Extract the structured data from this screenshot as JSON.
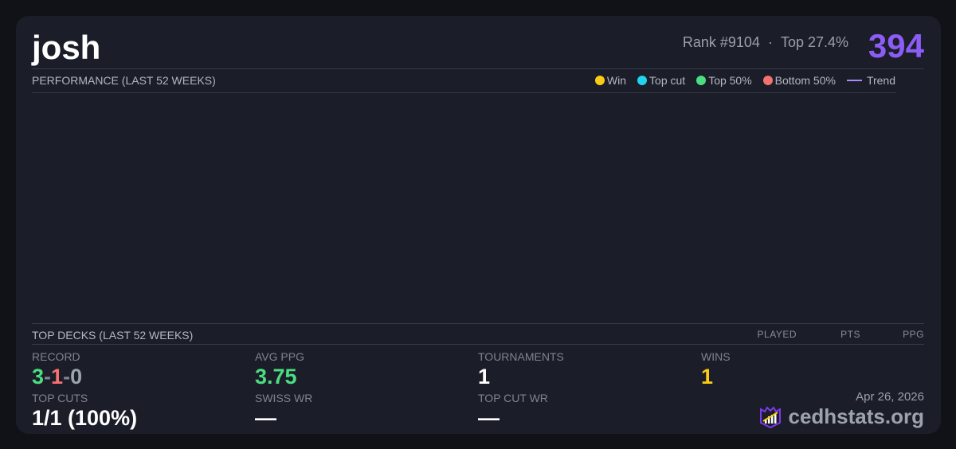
{
  "player": {
    "name": "josh",
    "rank": "Rank #9104",
    "top": "Top 27.4%",
    "separator": "·",
    "score": "394"
  },
  "performance": {
    "title": "PERFORMANCE (LAST 52 WEEKS)",
    "legend": [
      {
        "label": "Win",
        "color": "#facc15"
      },
      {
        "label": "Top cut",
        "color": "#22d3ee"
      },
      {
        "label": "Top 50%",
        "color": "#4ade80"
      },
      {
        "label": "Bottom 50%",
        "color": "#f87171"
      }
    ],
    "trend_label": "Trend",
    "trend_color": "#a78bfa"
  },
  "decks": {
    "title": "TOP DECKS (LAST 52 WEEKS)",
    "columns": [
      "PLAYED",
      "PTS",
      "PPG"
    ]
  },
  "stats": {
    "record": {
      "label": "RECORD",
      "wins": "3",
      "losses": "1",
      "draws": "0"
    },
    "avg_ppg": {
      "label": "AVG PPG",
      "value": "3.75"
    },
    "tournaments": {
      "label": "TOURNAMENTS",
      "value": "1"
    },
    "wins": {
      "label": "WINS",
      "value": "1"
    },
    "top_cuts": {
      "label": "TOP CUTS",
      "value": "1/1 (100%)"
    },
    "swiss_wr": {
      "label": "SWISS WR",
      "value": "—"
    },
    "top_cut_wr": {
      "label": "TOP CUT WR",
      "value": "—"
    }
  },
  "footer": {
    "date": "Apr 26, 2026",
    "brand": "cedhstats.org"
  }
}
